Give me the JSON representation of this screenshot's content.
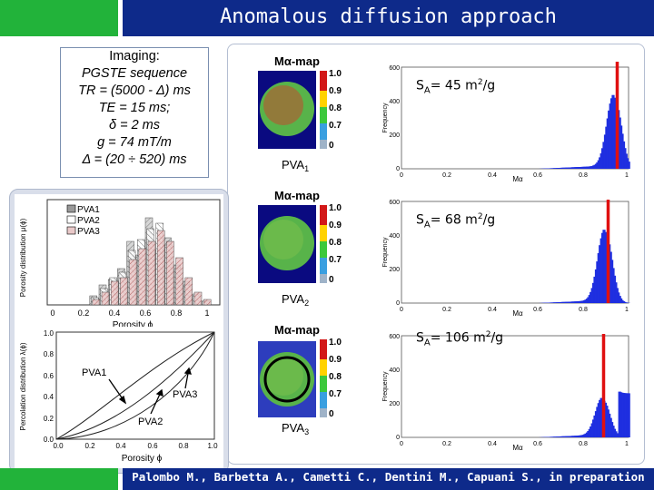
{
  "title": "Anomalous diffusion approach",
  "imaging": {
    "heading": "Imaging:",
    "lines": [
      "PGSTE sequence",
      "TR = (5000 - Δ) ms",
      "TE = 15 ms;",
      "δ = 2 ms",
      "g = 74 mT/m",
      "Δ = (20 ÷ 520) ms"
    ]
  },
  "porosity_plot": {
    "ylabel": "Porosity distribution μ(ϕ)",
    "xlabel": "Porosity  ϕ",
    "xticks": [
      "0",
      "0.2",
      "0.4",
      "0.6",
      "0.8",
      "1"
    ],
    "legend": [
      "PVA1",
      "PVA2",
      "PVA3"
    ]
  },
  "percolation_plot": {
    "ylabel": "Percolation distribution λ(ϕ)",
    "xlabel": "Porosity  ϕ",
    "xticks": [
      "0.0",
      "0.2",
      "0.4",
      "0.6",
      "0.8",
      "1.0"
    ],
    "yticks": [
      "0.0",
      "0.2",
      "0.4",
      "0.6",
      "0.8",
      "1.0"
    ],
    "labels": [
      "PVA1",
      "PVA3",
      "PVA2"
    ]
  },
  "maps": [
    {
      "map_title": "Mα-map",
      "sample": "PVA",
      "sub": "1",
      "sa_label": "S",
      "sa_sub": "A",
      "sa_value": "= 45 m",
      "sa_unit_sup": "2",
      "sa_unit_tail": "/g"
    },
    {
      "map_title": "Mα-map",
      "sample": "PVA",
      "sub": "2",
      "sa_label": "S",
      "sa_sub": "A",
      "sa_value": "= 68 m",
      "sa_unit_sup": "2",
      "sa_unit_tail": "/g"
    },
    {
      "map_title": "Mα-map",
      "sample": "PVA",
      "sub": "3",
      "sa_label": "S",
      "sa_sub": "A",
      "sa_value": "= 106 m",
      "sa_unit_sup": "2",
      "sa_unit_tail": "/g"
    }
  ],
  "colorbar_ticks": [
    "1.0",
    "0.9",
    "0.8",
    "0.7",
    "0"
  ],
  "histogram_axes": {
    "ylabel": "Frequency",
    "xlabel": "Mα",
    "yticks": [
      "0",
      "200",
      "400",
      "600"
    ],
    "xticks": [
      "0",
      "0.2",
      "0.4",
      "0.6",
      "0.8",
      "1"
    ]
  },
  "citation": "Palombo M., Barbetta A., Cametti C., Dentini M., Capuani S., in preparation",
  "colors": {
    "accent_green": "#22b33a",
    "bar_blue": "#0e2a8a",
    "hist_blue": "#1f2fe0",
    "marker_red": "#e01010"
  }
}
